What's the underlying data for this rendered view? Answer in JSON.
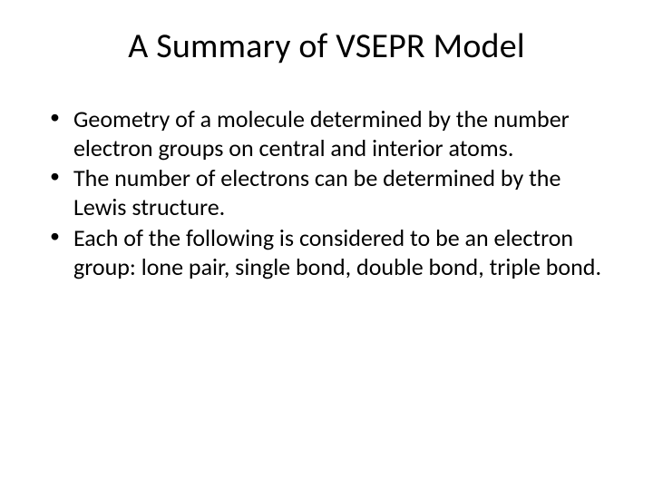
{
  "slide": {
    "title": "A Summary of VSEPR Model",
    "bullets": [
      "Geometry of a molecule determined by the number electron groups on central and interior atoms.",
      "The number of electrons can be determined by the Lewis structure.",
      "Each of the following is considered to be an electron group:  lone pair, single bond, double bond, triple bond."
    ],
    "title_fontsize": 38,
    "body_fontsize": 26,
    "text_color": "#000000",
    "background_color": "#ffffff",
    "font_family": "Calibri"
  }
}
